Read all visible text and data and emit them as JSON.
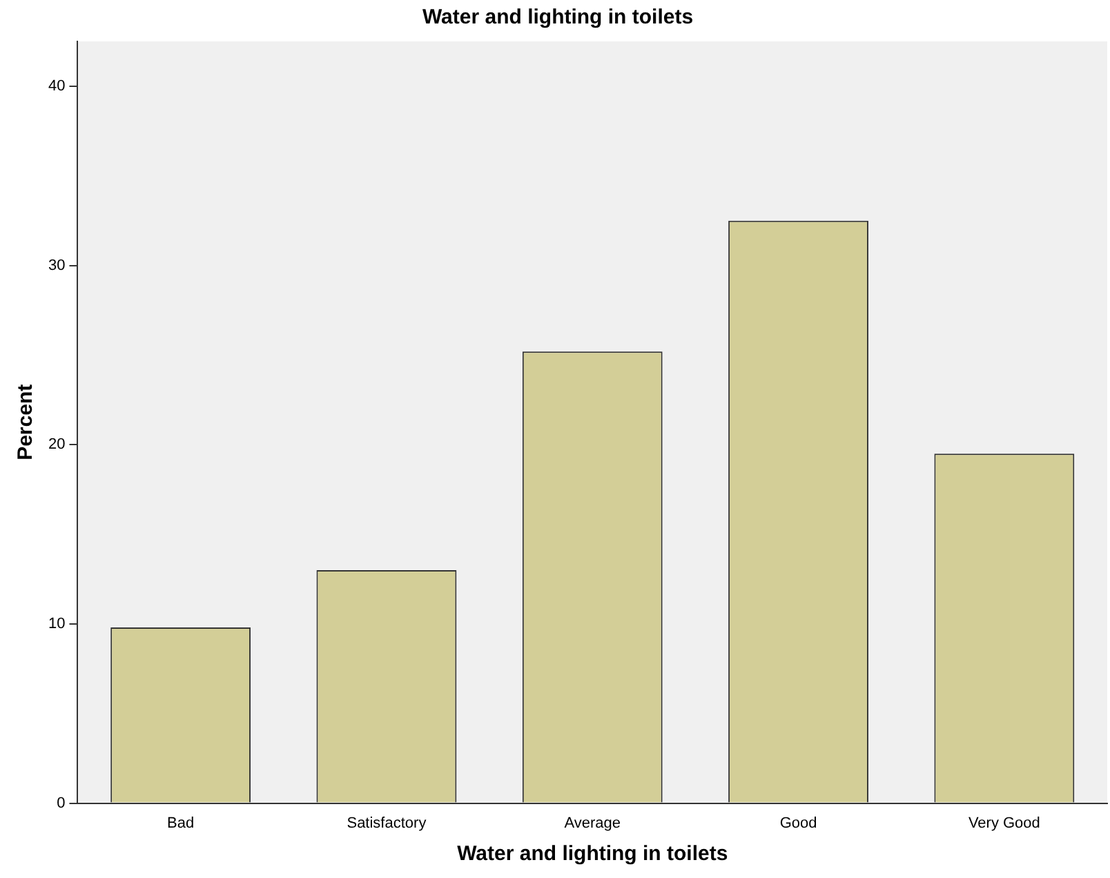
{
  "chart_data": {
    "type": "bar",
    "title": "Water and lighting in toilets",
    "xlabel": "Water and lighting in toilets",
    "ylabel": "Percent",
    "categories": [
      "Bad",
      "Satisfactory",
      "Average",
      "Good",
      "Very Good"
    ],
    "values": [
      9.8,
      13.0,
      25.2,
      32.5,
      19.5
    ],
    "color": "#d3ce97",
    "ylim": [
      0,
      42.5
    ],
    "yticks": [
      0,
      10,
      20,
      30,
      40
    ],
    "grid": false,
    "legend": false
  }
}
